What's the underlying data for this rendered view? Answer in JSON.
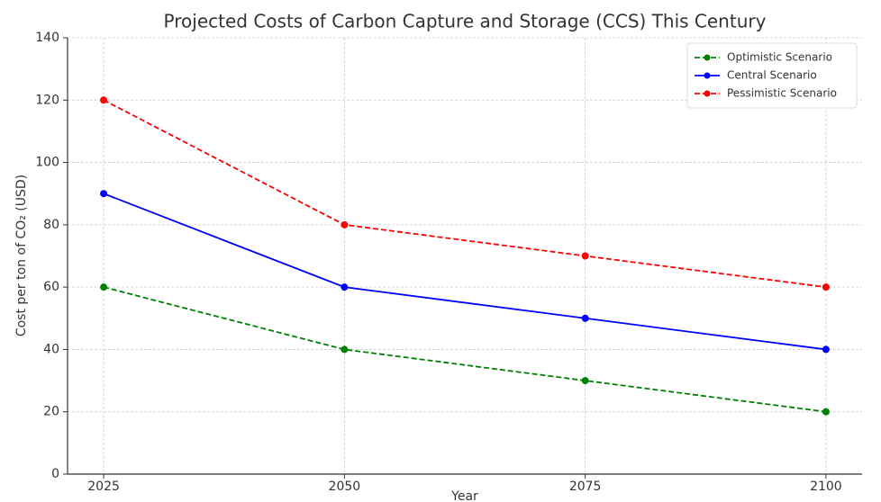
{
  "chart_data": {
    "type": "line",
    "title": "Projected Costs of Carbon Capture and Storage (CCS) This Century",
    "xlabel": "Year",
    "ylabel": "Cost per ton of CO₂ (USD)",
    "x": [
      2025,
      2050,
      2075,
      2100
    ],
    "series": [
      {
        "name": "Optimistic Scenario",
        "color": "#008000",
        "linestyle": "dashed",
        "values": [
          60,
          40,
          30,
          20
        ]
      },
      {
        "name": "Central Scenario",
        "color": "#0000ff",
        "linestyle": "solid",
        "values": [
          90,
          60,
          50,
          40
        ]
      },
      {
        "name": "Pessimistic Scenario",
        "color": "#ff0000",
        "linestyle": "dashed",
        "values": [
          120,
          80,
          70,
          60
        ]
      }
    ],
    "xlim": [
      2021.25,
      2103.75
    ],
    "xticks": [
      2025,
      2050,
      2075,
      2100
    ],
    "ylim": [
      0,
      140
    ],
    "yticks": [
      0,
      20,
      40,
      60,
      80,
      100,
      120,
      140
    ],
    "grid": true,
    "legend": "upper right"
  }
}
